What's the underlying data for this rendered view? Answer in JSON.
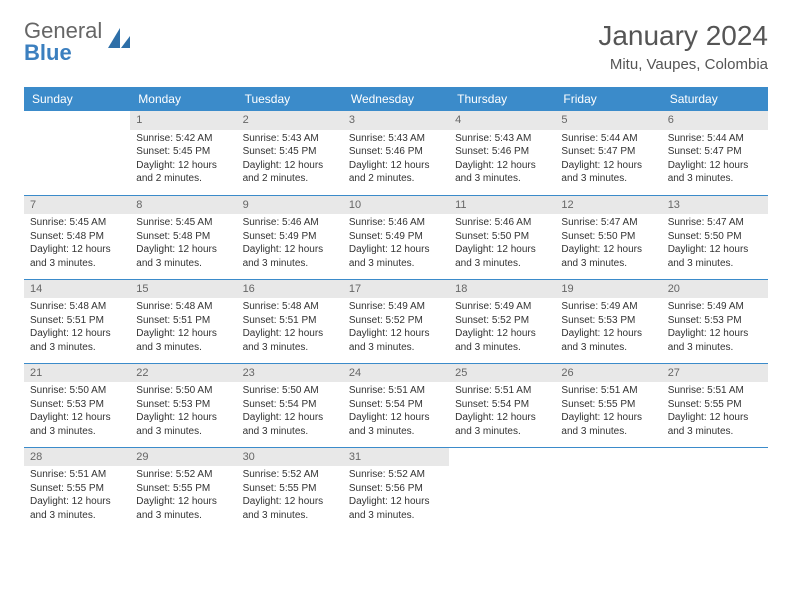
{
  "logo": {
    "top": "General",
    "bottom": "Blue"
  },
  "title": "January 2024",
  "location": "Mitu, Vaupes, Colombia",
  "colors": {
    "header_bg": "#3b8bca",
    "header_text": "#ffffff",
    "daynum_bg": "#e8e8e8",
    "daynum_text": "#666666",
    "body_text": "#333333",
    "rule": "#3b8bca",
    "logo_blue": "#3b7fbf"
  },
  "day_headers": [
    "Sunday",
    "Monday",
    "Tuesday",
    "Wednesday",
    "Thursday",
    "Friday",
    "Saturday"
  ],
  "layout": {
    "first_weekday_index": 1,
    "days_in_month": 31
  },
  "days": {
    "1": {
      "sunrise": "5:42 AM",
      "sunset": "5:45 PM",
      "daylight": "12 hours and 2 minutes."
    },
    "2": {
      "sunrise": "5:43 AM",
      "sunset": "5:45 PM",
      "daylight": "12 hours and 2 minutes."
    },
    "3": {
      "sunrise": "5:43 AM",
      "sunset": "5:46 PM",
      "daylight": "12 hours and 2 minutes."
    },
    "4": {
      "sunrise": "5:43 AM",
      "sunset": "5:46 PM",
      "daylight": "12 hours and 3 minutes."
    },
    "5": {
      "sunrise": "5:44 AM",
      "sunset": "5:47 PM",
      "daylight": "12 hours and 3 minutes."
    },
    "6": {
      "sunrise": "5:44 AM",
      "sunset": "5:47 PM",
      "daylight": "12 hours and 3 minutes."
    },
    "7": {
      "sunrise": "5:45 AM",
      "sunset": "5:48 PM",
      "daylight": "12 hours and 3 minutes."
    },
    "8": {
      "sunrise": "5:45 AM",
      "sunset": "5:48 PM",
      "daylight": "12 hours and 3 minutes."
    },
    "9": {
      "sunrise": "5:46 AM",
      "sunset": "5:49 PM",
      "daylight": "12 hours and 3 minutes."
    },
    "10": {
      "sunrise": "5:46 AM",
      "sunset": "5:49 PM",
      "daylight": "12 hours and 3 minutes."
    },
    "11": {
      "sunrise": "5:46 AM",
      "sunset": "5:50 PM",
      "daylight": "12 hours and 3 minutes."
    },
    "12": {
      "sunrise": "5:47 AM",
      "sunset": "5:50 PM",
      "daylight": "12 hours and 3 minutes."
    },
    "13": {
      "sunrise": "5:47 AM",
      "sunset": "5:50 PM",
      "daylight": "12 hours and 3 minutes."
    },
    "14": {
      "sunrise": "5:48 AM",
      "sunset": "5:51 PM",
      "daylight": "12 hours and 3 minutes."
    },
    "15": {
      "sunrise": "5:48 AM",
      "sunset": "5:51 PM",
      "daylight": "12 hours and 3 minutes."
    },
    "16": {
      "sunrise": "5:48 AM",
      "sunset": "5:51 PM",
      "daylight": "12 hours and 3 minutes."
    },
    "17": {
      "sunrise": "5:49 AM",
      "sunset": "5:52 PM",
      "daylight": "12 hours and 3 minutes."
    },
    "18": {
      "sunrise": "5:49 AM",
      "sunset": "5:52 PM",
      "daylight": "12 hours and 3 minutes."
    },
    "19": {
      "sunrise": "5:49 AM",
      "sunset": "5:53 PM",
      "daylight": "12 hours and 3 minutes."
    },
    "20": {
      "sunrise": "5:49 AM",
      "sunset": "5:53 PM",
      "daylight": "12 hours and 3 minutes."
    },
    "21": {
      "sunrise": "5:50 AM",
      "sunset": "5:53 PM",
      "daylight": "12 hours and 3 minutes."
    },
    "22": {
      "sunrise": "5:50 AM",
      "sunset": "5:53 PM",
      "daylight": "12 hours and 3 minutes."
    },
    "23": {
      "sunrise": "5:50 AM",
      "sunset": "5:54 PM",
      "daylight": "12 hours and 3 minutes."
    },
    "24": {
      "sunrise": "5:51 AM",
      "sunset": "5:54 PM",
      "daylight": "12 hours and 3 minutes."
    },
    "25": {
      "sunrise": "5:51 AM",
      "sunset": "5:54 PM",
      "daylight": "12 hours and 3 minutes."
    },
    "26": {
      "sunrise": "5:51 AM",
      "sunset": "5:55 PM",
      "daylight": "12 hours and 3 minutes."
    },
    "27": {
      "sunrise": "5:51 AM",
      "sunset": "5:55 PM",
      "daylight": "12 hours and 3 minutes."
    },
    "28": {
      "sunrise": "5:51 AM",
      "sunset": "5:55 PM",
      "daylight": "12 hours and 3 minutes."
    },
    "29": {
      "sunrise": "5:52 AM",
      "sunset": "5:55 PM",
      "daylight": "12 hours and 3 minutes."
    },
    "30": {
      "sunrise": "5:52 AM",
      "sunset": "5:55 PM",
      "daylight": "12 hours and 3 minutes."
    },
    "31": {
      "sunrise": "5:52 AM",
      "sunset": "5:56 PM",
      "daylight": "12 hours and 3 minutes."
    }
  },
  "labels": {
    "sunrise": "Sunrise:",
    "sunset": "Sunset:",
    "daylight": "Daylight:"
  }
}
